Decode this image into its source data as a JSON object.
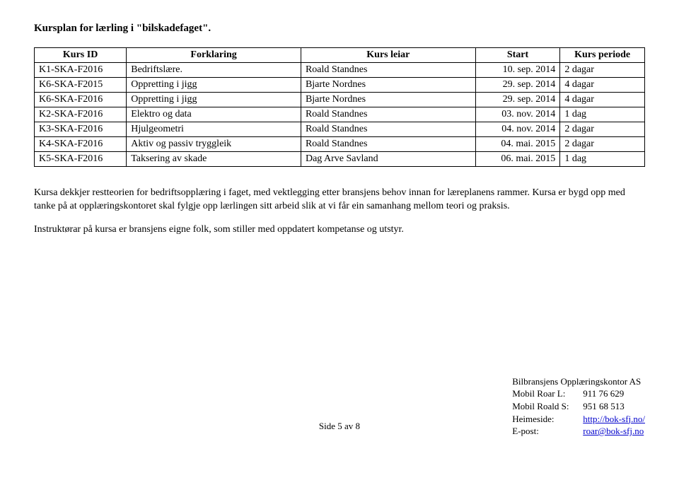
{
  "title": "Kursplan for lærling i \"bilskadefaget\".",
  "table": {
    "columns": [
      "Kurs ID",
      "Forklaring",
      "Kurs leiar",
      "Start",
      "Kurs periode"
    ],
    "rows": [
      [
        "K1-SKA-F2016",
        "Bedriftslære.",
        "Roald Standnes",
        "10. sep. 2014",
        "2 dagar"
      ],
      [
        "K6-SKA-F2015",
        "Oppretting i jigg",
        "Bjarte Nordnes",
        "29. sep. 2014",
        "4 dagar"
      ],
      [
        "K6-SKA-F2016",
        "Oppretting i jigg",
        "Bjarte Nordnes",
        "29. sep. 2014",
        "4 dagar"
      ],
      [
        "K2-SKA-F2016",
        "Elektro og data",
        "Roald Standnes",
        "03. nov. 2014",
        "1 dag"
      ],
      [
        "K3-SKA-F2016",
        "Hjulgeometri",
        "Roald Standnes",
        "04. nov. 2014",
        "2 dagar"
      ],
      [
        "K4-SKA-F2016",
        "Aktiv og passiv tryggleik",
        "Roald Standnes",
        "04. mai. 2015",
        "2 dagar"
      ],
      [
        "K5-SKA-F2016",
        "Taksering av skade",
        "Dag Arve Savland",
        "06. mai. 2015",
        "1 dag"
      ]
    ]
  },
  "para1": "Kursa dekkjer restteorien for bedriftsopplæring i faget, med vektlegging etter bransjens behov innan for læreplanens rammer. Kursa er bygd opp med tanke på at opplæringskontoret skal fylgje opp lærlingen sitt arbeid slik at vi får ein samanhang mellom teori og praksis.",
  "para2": "Instruktørar på kursa er bransjens eigne folk, som stiller med oppdatert kompetanse og utstyr.",
  "footer": {
    "page": "Side 5 av 8",
    "org": "Bilbransjens Opplæringskontor AS",
    "rows": [
      {
        "label": "Mobil Roar L:",
        "value": "911 76 629",
        "link": false
      },
      {
        "label": "Mobil Roald S:",
        "value": "951 68 513",
        "link": false
      },
      {
        "label": "Heimeside:",
        "value": "http://bok-sfj.no/",
        "link": true
      },
      {
        "label": "E-post:",
        "value": "roar@bok-sfj.no",
        "link": true
      }
    ]
  }
}
